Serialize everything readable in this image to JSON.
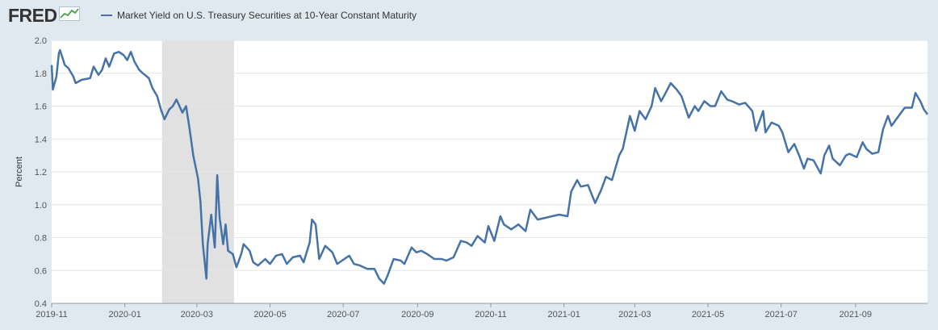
{
  "header": {
    "logo_text": "FRED",
    "logo_icon": "chart-line-icon"
  },
  "chart_data": {
    "type": "line",
    "title": "",
    "xlabel": "",
    "ylabel": "Percent",
    "ylim": [
      0.4,
      2.0
    ],
    "yticks": [
      "0.4",
      "0.6",
      "0.8",
      "1.0",
      "1.2",
      "1.4",
      "1.6",
      "1.8",
      "2.0"
    ],
    "xlim": [
      "2019-11-01",
      "2021-10-31"
    ],
    "xticks": [
      "2019-11",
      "2020-01",
      "2020-03",
      "2020-05",
      "2020-07",
      "2020-09",
      "2020-11",
      "2021-01",
      "2021-03",
      "2021-05",
      "2021-07",
      "2021-09"
    ],
    "grid": true,
    "legend_position": "top-left",
    "recession_shading": [
      [
        "2020-02-01",
        "2020-04-01"
      ]
    ],
    "series": [
      {
        "name": "Market Yield on U.S. Treasury Securities at 10-Year Constant Maturity",
        "color": "#4572a7",
        "points": [
          [
            "2019-11-01",
            1.85
          ],
          [
            "2019-11-02",
            1.7
          ],
          [
            "2019-11-05",
            1.78
          ],
          [
            "2019-11-07",
            1.92
          ],
          [
            "2019-11-08",
            1.94
          ],
          [
            "2019-11-12",
            1.85
          ],
          [
            "2019-11-15",
            1.83
          ],
          [
            "2019-11-19",
            1.78
          ],
          [
            "2019-11-21",
            1.74
          ],
          [
            "2019-11-26",
            1.76
          ],
          [
            "2019-12-03",
            1.77
          ],
          [
            "2019-12-06",
            1.84
          ],
          [
            "2019-12-10",
            1.79
          ],
          [
            "2019-12-13",
            1.82
          ],
          [
            "2019-12-16",
            1.89
          ],
          [
            "2019-12-19",
            1.84
          ],
          [
            "2019-12-23",
            1.92
          ],
          [
            "2019-12-27",
            1.93
          ],
          [
            "2019-12-31",
            1.91
          ],
          [
            "2020-01-03",
            1.88
          ],
          [
            "2020-01-06",
            1.93
          ],
          [
            "2020-01-09",
            1.87
          ],
          [
            "2020-01-13",
            1.82
          ],
          [
            "2020-01-16",
            1.8
          ],
          [
            "2020-01-21",
            1.77
          ],
          [
            "2020-01-24",
            1.71
          ],
          [
            "2020-01-28",
            1.66
          ],
          [
            "2020-01-31",
            1.58
          ],
          [
            "2020-02-03",
            1.52
          ],
          [
            "2020-02-07",
            1.58
          ],
          [
            "2020-02-10",
            1.6
          ],
          [
            "2020-02-13",
            1.64
          ],
          [
            "2020-02-18",
            1.56
          ],
          [
            "2020-02-21",
            1.6
          ],
          [
            "2020-02-24",
            1.46
          ],
          [
            "2020-02-27",
            1.3
          ],
          [
            "2020-03-02",
            1.16
          ],
          [
            "2020-03-04",
            1.02
          ],
          [
            "2020-03-06",
            0.76
          ],
          [
            "2020-03-09",
            0.55
          ],
          [
            "2020-03-10",
            0.76
          ],
          [
            "2020-03-12",
            0.88
          ],
          [
            "2020-03-13",
            0.94
          ],
          [
            "2020-03-16",
            0.74
          ],
          [
            "2020-03-18",
            1.18
          ],
          [
            "2020-03-20",
            0.92
          ],
          [
            "2020-03-23",
            0.76
          ],
          [
            "2020-03-25",
            0.88
          ],
          [
            "2020-03-27",
            0.72
          ],
          [
            "2020-03-31",
            0.7
          ],
          [
            "2020-04-03",
            0.62
          ],
          [
            "2020-04-07",
            0.7
          ],
          [
            "2020-04-09",
            0.76
          ],
          [
            "2020-04-14",
            0.72
          ],
          [
            "2020-04-17",
            0.65
          ],
          [
            "2020-04-21",
            0.63
          ],
          [
            "2020-04-27",
            0.67
          ],
          [
            "2020-05-01",
            0.64
          ],
          [
            "2020-05-06",
            0.69
          ],
          [
            "2020-05-11",
            0.7
          ],
          [
            "2020-05-15",
            0.64
          ],
          [
            "2020-05-20",
            0.68
          ],
          [
            "2020-05-26",
            0.69
          ],
          [
            "2020-05-29",
            0.65
          ],
          [
            "2020-06-03",
            0.77
          ],
          [
            "2020-06-05",
            0.91
          ],
          [
            "2020-06-08",
            0.88
          ],
          [
            "2020-06-11",
            0.67
          ],
          [
            "2020-06-16",
            0.75
          ],
          [
            "2020-06-22",
            0.71
          ],
          [
            "2020-06-26",
            0.64
          ],
          [
            "2020-06-30",
            0.66
          ],
          [
            "2020-07-06",
            0.69
          ],
          [
            "2020-07-10",
            0.64
          ],
          [
            "2020-07-15",
            0.63
          ],
          [
            "2020-07-21",
            0.61
          ],
          [
            "2020-07-27",
            0.61
          ],
          [
            "2020-07-31",
            0.55
          ],
          [
            "2020-08-04",
            0.52
          ],
          [
            "2020-08-07",
            0.57
          ],
          [
            "2020-08-12",
            0.67
          ],
          [
            "2020-08-18",
            0.66
          ],
          [
            "2020-08-21",
            0.64
          ],
          [
            "2020-08-27",
            0.74
          ],
          [
            "2020-08-31",
            0.71
          ],
          [
            "2020-09-04",
            0.72
          ],
          [
            "2020-09-09",
            0.7
          ],
          [
            "2020-09-15",
            0.67
          ],
          [
            "2020-09-21",
            0.67
          ],
          [
            "2020-09-25",
            0.66
          ],
          [
            "2020-10-01",
            0.68
          ],
          [
            "2020-10-07",
            0.78
          ],
          [
            "2020-10-12",
            0.77
          ],
          [
            "2020-10-16",
            0.75
          ],
          [
            "2020-10-21",
            0.81
          ],
          [
            "2020-10-27",
            0.77
          ],
          [
            "2020-10-30",
            0.87
          ],
          [
            "2020-11-04",
            0.78
          ],
          [
            "2020-11-09",
            0.93
          ],
          [
            "2020-11-12",
            0.88
          ],
          [
            "2020-11-18",
            0.85
          ],
          [
            "2020-11-24",
            0.88
          ],
          [
            "2020-11-30",
            0.84
          ],
          [
            "2020-12-04",
            0.97
          ],
          [
            "2020-12-10",
            0.91
          ],
          [
            "2020-12-16",
            0.92
          ],
          [
            "2020-12-22",
            0.93
          ],
          [
            "2020-12-28",
            0.94
          ],
          [
            "2021-01-04",
            0.93
          ],
          [
            "2021-01-07",
            1.08
          ],
          [
            "2021-01-12",
            1.15
          ],
          [
            "2021-01-15",
            1.11
          ],
          [
            "2021-01-21",
            1.12
          ],
          [
            "2021-01-27",
            1.01
          ],
          [
            "2021-02-01",
            1.09
          ],
          [
            "2021-02-05",
            1.17
          ],
          [
            "2021-02-10",
            1.15
          ],
          [
            "2021-02-16",
            1.3
          ],
          [
            "2021-02-19",
            1.34
          ],
          [
            "2021-02-25",
            1.54
          ],
          [
            "2021-03-01",
            1.45
          ],
          [
            "2021-03-05",
            1.57
          ],
          [
            "2021-03-10",
            1.52
          ],
          [
            "2021-03-15",
            1.6
          ],
          [
            "2021-03-18",
            1.71
          ],
          [
            "2021-03-23",
            1.63
          ],
          [
            "2021-03-26",
            1.67
          ],
          [
            "2021-03-31",
            1.74
          ],
          [
            "2021-04-05",
            1.7
          ],
          [
            "2021-04-09",
            1.66
          ],
          [
            "2021-04-15",
            1.53
          ],
          [
            "2021-04-20",
            1.6
          ],
          [
            "2021-04-23",
            1.57
          ],
          [
            "2021-04-28",
            1.63
          ],
          [
            "2021-05-03",
            1.6
          ],
          [
            "2021-05-07",
            1.6
          ],
          [
            "2021-05-12",
            1.69
          ],
          [
            "2021-05-17",
            1.64
          ],
          [
            "2021-05-21",
            1.63
          ],
          [
            "2021-05-27",
            1.61
          ],
          [
            "2021-06-01",
            1.62
          ],
          [
            "2021-06-07",
            1.57
          ],
          [
            "2021-06-10",
            1.45
          ],
          [
            "2021-06-16",
            1.57
          ],
          [
            "2021-06-18",
            1.44
          ],
          [
            "2021-06-23",
            1.5
          ],
          [
            "2021-06-29",
            1.48
          ],
          [
            "2021-07-02",
            1.44
          ],
          [
            "2021-07-07",
            1.32
          ],
          [
            "2021-07-12",
            1.37
          ],
          [
            "2021-07-16",
            1.3
          ],
          [
            "2021-07-20",
            1.22
          ],
          [
            "2021-07-23",
            1.28
          ],
          [
            "2021-07-28",
            1.27
          ],
          [
            "2021-08-03",
            1.19
          ],
          [
            "2021-08-06",
            1.3
          ],
          [
            "2021-08-10",
            1.36
          ],
          [
            "2021-08-13",
            1.28
          ],
          [
            "2021-08-19",
            1.24
          ],
          [
            "2021-08-24",
            1.3
          ],
          [
            "2021-08-27",
            1.31
          ],
          [
            "2021-09-02",
            1.29
          ],
          [
            "2021-09-07",
            1.38
          ],
          [
            "2021-09-10",
            1.34
          ],
          [
            "2021-09-15",
            1.31
          ],
          [
            "2021-09-20",
            1.32
          ],
          [
            "2021-09-24",
            1.46
          ],
          [
            "2021-09-28",
            1.54
          ],
          [
            "2021-10-01",
            1.48
          ],
          [
            "2021-10-06",
            1.53
          ],
          [
            "2021-10-12",
            1.59
          ],
          [
            "2021-10-18",
            1.59
          ],
          [
            "2021-10-21",
            1.68
          ],
          [
            "2021-10-25",
            1.63
          ],
          [
            "2021-10-28",
            1.58
          ],
          [
            "2021-10-31",
            1.55
          ]
        ]
      }
    ]
  }
}
